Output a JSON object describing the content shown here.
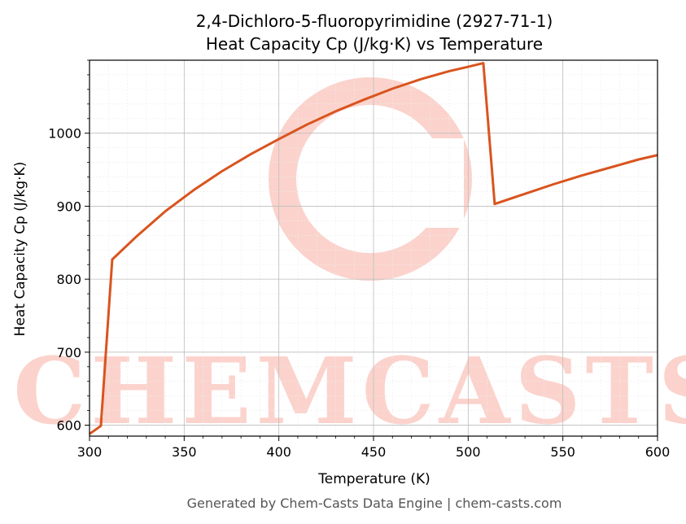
{
  "chart_data": {
    "type": "line",
    "title": "2,4-Dichloro-5-fluoropyrimidine (2927-71-1)",
    "subtitle": "Heat Capacity Cp (J/kg·K) vs Temperature",
    "xlabel": "Temperature (K)",
    "ylabel": "Heat Capacity Cp (J/kg·K)",
    "xlim": [
      300,
      600
    ],
    "ylim": [
      585,
      1100
    ],
    "xticks": [
      300,
      350,
      400,
      450,
      500,
      550,
      600
    ],
    "yticks": [
      600,
      700,
      800,
      900,
      1000
    ],
    "grid": true,
    "legend": "none",
    "line_color": "#d9541e",
    "series": [
      {
        "x": [
          300,
          306,
          312,
          325,
          340,
          355,
          370,
          385,
          400,
          415,
          430,
          445,
          460,
          475,
          490,
          500,
          508,
          514,
          530,
          545,
          560,
          575,
          590,
          600
        ],
        "values": [
          588,
          599,
          827,
          859,
          893,
          922,
          948,
          971,
          992,
          1012,
          1030,
          1046,
          1061,
          1074,
          1085,
          1091,
          1096,
          903,
          917,
          930,
          942,
          953,
          964,
          970
        ]
      }
    ],
    "watermark": "CHEMCASTS"
  },
  "footer": "Generated by Chem-Casts Data Engine | chem-casts.com"
}
